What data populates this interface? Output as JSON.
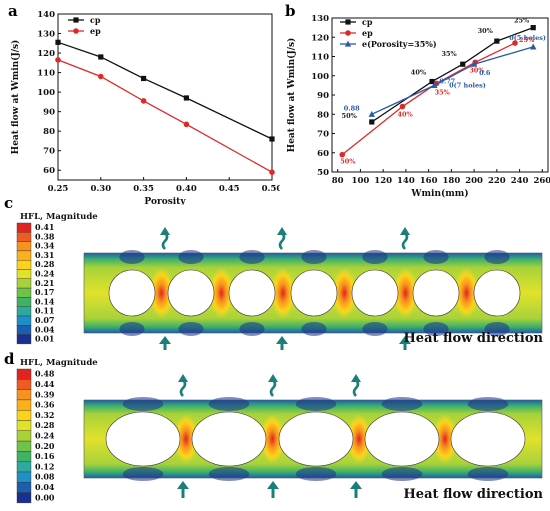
{
  "panels": {
    "a": "a",
    "b": "b",
    "c": "c",
    "d": "d"
  },
  "chart_data": [
    {
      "type": "line",
      "panel": "a",
      "xlabel": "Porosity",
      "ylabel": "Heat flow at Wmin(J/s)",
      "xlim": [
        0.25,
        0.5
      ],
      "ylim": [
        55,
        140
      ],
      "x_ticks": [
        0.25,
        0.3,
        0.35,
        0.4,
        0.45,
        0.5
      ],
      "x_tick_labels": [
        "0.25",
        "0.30",
        "0.35",
        "0.40",
        "0.45",
        "0.50"
      ],
      "y_ticks": [
        60,
        70,
        80,
        90,
        100,
        110,
        120,
        130,
        140
      ],
      "y_tick_labels": [
        "60",
        "70",
        "80",
        "90",
        "100",
        "110",
        "120",
        "130",
        "140"
      ],
      "legend_position": "top-left",
      "series": [
        {
          "name": "cp",
          "color": "#111111",
          "marker": "square",
          "x": [
            0.25,
            0.3,
            0.35,
            0.4,
            0.5
          ],
          "y": [
            125.5,
            118,
            107,
            97,
            76
          ]
        },
        {
          "name": "ep",
          "color": "#e02828",
          "marker": "circle",
          "x": [
            0.25,
            0.3,
            0.35,
            0.4,
            0.5
          ],
          "y": [
            116.5,
            108,
            95.5,
            83.5,
            59
          ]
        }
      ]
    },
    {
      "type": "line",
      "panel": "b",
      "xlabel": "Wmin(mm)",
      "ylabel": "Heat flow at Wmin(J/s)",
      "xlim": [
        75,
        265
      ],
      "ylim": [
        50,
        130
      ],
      "x_ticks": [
        80,
        100,
        120,
        140,
        160,
        180,
        200,
        220,
        240,
        260
      ],
      "x_tick_labels": [
        "80",
        "100",
        "120",
        "140",
        "160",
        "180",
        "200",
        "220",
        "240",
        "260"
      ],
      "y_ticks": [
        50,
        60,
        70,
        80,
        90,
        100,
        110,
        120,
        130
      ],
      "y_tick_labels": [
        "50",
        "60",
        "70",
        "80",
        "90",
        "100",
        "110",
        "120",
        "130"
      ],
      "legend_position": "top-left",
      "series": [
        {
          "name": "cp",
          "color": "#111111",
          "marker": "square",
          "x": [
            110,
            163,
            190,
            220,
            252
          ],
          "y": [
            76,
            97,
            106,
            118,
            125
          ],
          "labels": [
            "50%",
            "40%",
            "35%",
            "30%",
            "25%"
          ]
        },
        {
          "name": "ep",
          "color": "#e02828",
          "marker": "circle",
          "x": [
            84,
            137,
            167,
            201,
            236
          ],
          "y": [
            59,
            84,
            96,
            107,
            117
          ],
          "labels": [
            "50%",
            "40%",
            "35%",
            "30%",
            "25%"
          ]
        },
        {
          "name": "e(Porosity=35%)",
          "color": "#2a5aa8",
          "marker": "triangle",
          "x": [
            110,
            165,
            200,
            252
          ],
          "y": [
            80,
            95,
            106,
            115
          ],
          "labels": [
            "0.88",
            "0.77",
            "0.6",
            "0(5 holes)"
          ],
          "extra_label": "0(7 holes)"
        }
      ]
    }
  ],
  "contour_c": {
    "legend_title": "HFL, Magnitude",
    "levels": [
      "0.41",
      "0.38",
      "0.34",
      "0.31",
      "0.28",
      "0.24",
      "0.21",
      "0.17",
      "0.14",
      "0.11",
      "0.07",
      "0.04",
      "0.01"
    ],
    "caption": "Heat flow direction"
  },
  "contour_d": {
    "legend_title": "HFL, Magnitude",
    "levels": [
      "0.48",
      "0.44",
      "0.39",
      "0.36",
      "0.32",
      "0.28",
      "0.24",
      "0.20",
      "0.16",
      "0.12",
      "0.08",
      "0.04",
      "0.00"
    ],
    "caption": "Heat flow direction"
  },
  "colors": {
    "scale": [
      "#e3231f",
      "#f05a23",
      "#f6921e",
      "#fbb01c",
      "#ffd21a",
      "#e1e22a",
      "#a7d23a",
      "#6fc24a",
      "#3fb268",
      "#2fa8a0",
      "#1f8fc8",
      "#1c5fb0",
      "#1a2f8f"
    ],
    "arrow": "#1a7f7a"
  }
}
